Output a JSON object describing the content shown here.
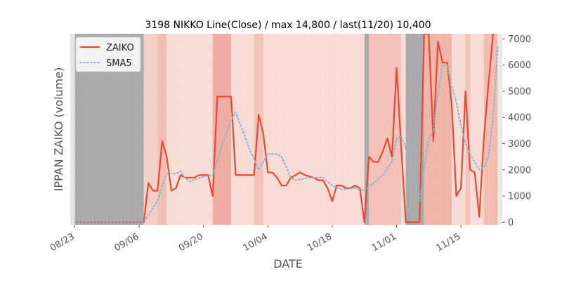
{
  "chart_data": {
    "type": "line",
    "title": "3198 NIKKO Line(Close) / max 14,800 / last(11/20) 10,400",
    "xlabel": "DATE",
    "ylabel": "IPPAN ZAIKO (volume)",
    "ylim": [
      -100,
      7200
    ],
    "xlim": [
      "2020-08-22",
      "2020-11-24"
    ],
    "y_axis_side": "right",
    "x_ticks": [
      {
        "date": "2020-08-23",
        "label": "08/23"
      },
      {
        "date": "2020-09-06",
        "label": "09/06"
      },
      {
        "date": "2020-09-20",
        "label": "09/20"
      },
      {
        "date": "2020-10-04",
        "label": "10/04"
      },
      {
        "date": "2020-10-18",
        "label": "10/18"
      },
      {
        "date": "2020-11-01",
        "label": "11/01"
      },
      {
        "date": "2020-11-15",
        "label": "11/15"
      }
    ],
    "y_ticks": [
      0,
      1000,
      2000,
      3000,
      4000,
      5000,
      6000,
      7000
    ],
    "grid": false,
    "legend_position": "upper-left",
    "plot_background": "#e5e5e5",
    "series": [
      {
        "name": "ZAIKO",
        "style": "solid",
        "color": "#e24a33",
        "points": [
          [
            "2020-08-23",
            0
          ],
          [
            "2020-09-07",
            0
          ],
          [
            "2020-09-08",
            1500
          ],
          [
            "2020-09-09",
            1200
          ],
          [
            "2020-09-10",
            1200
          ],
          [
            "2020-09-11",
            3100
          ],
          [
            "2020-09-12",
            2500
          ],
          [
            "2020-09-13",
            1200
          ],
          [
            "2020-09-14",
            1300
          ],
          [
            "2020-09-15",
            1800
          ],
          [
            "2020-09-16",
            1700
          ],
          [
            "2020-09-18",
            1700
          ],
          [
            "2020-09-19",
            1800
          ],
          [
            "2020-09-21",
            1800
          ],
          [
            "2020-09-22",
            1000
          ],
          [
            "2020-09-23",
            4800
          ],
          [
            "2020-09-26",
            4800
          ],
          [
            "2020-09-27",
            1800
          ],
          [
            "2020-10-01",
            1800
          ],
          [
            "2020-10-02",
            4100
          ],
          [
            "2020-10-03",
            3400
          ],
          [
            "2020-10-04",
            1900
          ],
          [
            "2020-10-05",
            1900
          ],
          [
            "2020-10-06",
            1700
          ],
          [
            "2020-10-07",
            1400
          ],
          [
            "2020-10-08",
            1400
          ],
          [
            "2020-10-09",
            1700
          ],
          [
            "2020-10-11",
            1900
          ],
          [
            "2020-10-12",
            1800
          ],
          [
            "2020-10-14",
            1700
          ],
          [
            "2020-10-15",
            1600
          ],
          [
            "2020-10-16",
            1600
          ],
          [
            "2020-10-17",
            1300
          ],
          [
            "2020-10-18",
            800
          ],
          [
            "2020-10-19",
            1400
          ],
          [
            "2020-10-20",
            1400
          ],
          [
            "2020-10-21",
            1300
          ],
          [
            "2020-10-22",
            1300
          ],
          [
            "2020-10-23",
            1400
          ],
          [
            "2020-10-24",
            1300
          ],
          [
            "2020-10-25",
            0
          ],
          [
            "2020-10-26",
            2500
          ],
          [
            "2020-10-27",
            2300
          ],
          [
            "2020-10-28",
            2300
          ],
          [
            "2020-10-29",
            2700
          ],
          [
            "2020-10-30",
            3200
          ],
          [
            "2020-10-31",
            2500
          ],
          [
            "2020-11-01",
            5900
          ],
          [
            "2020-11-02",
            2900
          ],
          [
            "2020-11-03",
            0
          ],
          [
            "2020-11-06",
            0
          ],
          [
            "2020-11-07",
            7200
          ],
          [
            "2020-11-08",
            7200
          ],
          [
            "2020-11-09",
            3100
          ],
          [
            "2020-11-10",
            6900
          ],
          [
            "2020-11-11",
            6100
          ],
          [
            "2020-11-12",
            6100
          ],
          [
            "2020-11-13",
            4500
          ],
          [
            "2020-11-14",
            1000
          ],
          [
            "2020-11-15",
            1300
          ],
          [
            "2020-11-16",
            5000
          ],
          [
            "2020-11-17",
            2000
          ],
          [
            "2020-11-18",
            1900
          ],
          [
            "2020-11-19",
            200
          ],
          [
            "2020-11-20",
            3200
          ],
          [
            "2020-11-21",
            5300
          ],
          [
            "2020-11-22",
            7200
          ]
        ]
      },
      {
        "name": "SMA5",
        "style": "dotted",
        "color": "#8eb4d4",
        "points": [
          [
            "2020-08-23",
            0
          ],
          [
            "2020-09-07",
            0
          ],
          [
            "2020-09-10",
            800
          ],
          [
            "2020-09-11",
            1400
          ],
          [
            "2020-09-12",
            1850
          ],
          [
            "2020-09-14",
            1850
          ],
          [
            "2020-09-15",
            1950
          ],
          [
            "2020-09-16",
            1700
          ],
          [
            "2020-09-17",
            1550
          ],
          [
            "2020-09-20",
            1750
          ],
          [
            "2020-09-22",
            1800
          ],
          [
            "2020-09-24",
            2900
          ],
          [
            "2020-09-26",
            3900
          ],
          [
            "2020-09-27",
            4200
          ],
          [
            "2020-09-30",
            2800
          ],
          [
            "2020-10-02",
            2000
          ],
          [
            "2020-10-04",
            2600
          ],
          [
            "2020-10-06",
            2600
          ],
          [
            "2020-10-07",
            2500
          ],
          [
            "2020-10-09",
            1700
          ],
          [
            "2020-10-10",
            1600
          ],
          [
            "2020-10-13",
            1700
          ],
          [
            "2020-10-16",
            1700
          ],
          [
            "2020-10-18",
            1400
          ],
          [
            "2020-10-20",
            1250
          ],
          [
            "2020-10-23",
            1300
          ],
          [
            "2020-10-25",
            1200
          ],
          [
            "2020-10-27",
            1500
          ],
          [
            "2020-10-29",
            1800
          ],
          [
            "2020-10-31",
            2300
          ],
          [
            "2020-11-01",
            3200
          ],
          [
            "2020-11-02",
            3300
          ],
          [
            "2020-11-04",
            2300
          ],
          [
            "2020-11-06",
            800
          ],
          [
            "2020-11-07",
            2000
          ],
          [
            "2020-11-08",
            3200
          ],
          [
            "2020-11-09",
            3500
          ],
          [
            "2020-11-10",
            5000
          ],
          [
            "2020-11-11",
            6000
          ],
          [
            "2020-11-12",
            6000
          ],
          [
            "2020-11-13",
            5200
          ],
          [
            "2020-11-14",
            4600
          ],
          [
            "2020-11-15",
            3700
          ],
          [
            "2020-11-16",
            3000
          ],
          [
            "2020-11-17",
            2600
          ],
          [
            "2020-11-18",
            2300
          ],
          [
            "2020-11-19",
            2000
          ],
          [
            "2020-11-20",
            2100
          ],
          [
            "2020-11-21",
            2500
          ],
          [
            "2020-11-22",
            4000
          ],
          [
            "2020-11-23",
            6700
          ]
        ]
      }
    ],
    "background_bands": [
      {
        "start": "2020-08-22",
        "end": "2020-08-23",
        "color": "#e4e4e4"
      },
      {
        "start": "2020-08-23",
        "end": "2020-09-07",
        "color": "#aaaaaa"
      },
      {
        "start": "2020-09-07",
        "end": "2020-09-10",
        "color": "#f4cfc6"
      },
      {
        "start": "2020-09-10",
        "end": "2020-09-12",
        "color": "#f2bfb4"
      },
      {
        "start": "2020-09-12",
        "end": "2020-09-22",
        "color": "#f6ddd6"
      },
      {
        "start": "2020-09-22",
        "end": "2020-09-26",
        "color": "#f0ada1"
      },
      {
        "start": "2020-09-26",
        "end": "2020-10-01",
        "color": "#f6dcd5"
      },
      {
        "start": "2020-10-01",
        "end": "2020-10-03",
        "color": "#f3c2b8"
      },
      {
        "start": "2020-10-03",
        "end": "2020-10-25",
        "color": "#f6dcd5"
      },
      {
        "start": "2020-10-25",
        "end": "2020-10-26",
        "color": "#aaaaaa"
      },
      {
        "start": "2020-10-26",
        "end": "2020-11-02",
        "color": "#f3c1b7"
      },
      {
        "start": "2020-11-02",
        "end": "2020-11-03",
        "color": "#f6dcd5"
      },
      {
        "start": "2020-11-03",
        "end": "2020-11-07",
        "color": "#aaaaaa"
      },
      {
        "start": "2020-11-07",
        "end": "2020-11-13",
        "color": "#f1b6aa"
      },
      {
        "start": "2020-11-13",
        "end": "2020-11-16",
        "color": "#f6dcd5"
      },
      {
        "start": "2020-11-16",
        "end": "2020-11-17",
        "color": "#f3c2b8"
      },
      {
        "start": "2020-11-17",
        "end": "2020-11-20",
        "color": "#f6dcd5"
      },
      {
        "start": "2020-11-20",
        "end": "2020-11-23",
        "color": "#f2bcb1"
      },
      {
        "start": "2020-11-23",
        "end": "2020-11-24",
        "color": "#e9e9e9"
      }
    ]
  }
}
